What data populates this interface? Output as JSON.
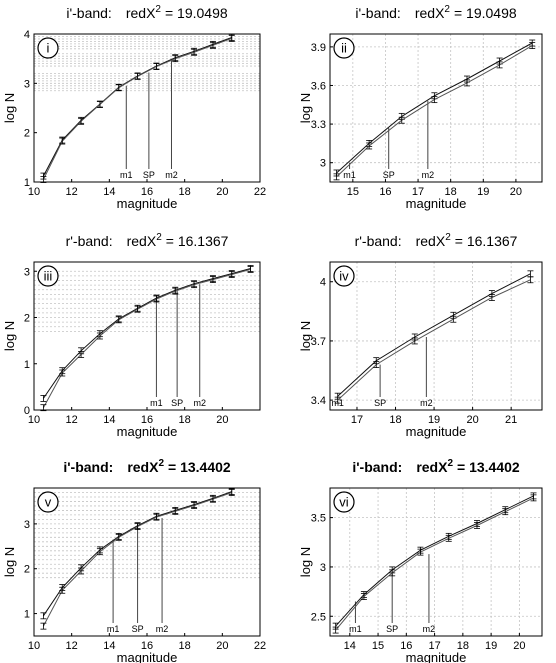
{
  "figure": {
    "panels": [
      {
        "id": "i",
        "roman": "i",
        "title_band": "i'-band:",
        "title_stat": "redX",
        "title_exp": "2",
        "title_value": "= 19.0498",
        "bold": false,
        "xlabel": "magnitude",
        "ylabel": "log N",
        "xlim": [
          10,
          22
        ],
        "ylim": [
          1,
          4
        ],
        "xticks": [
          10,
          12,
          14,
          16,
          18,
          20,
          22
        ],
        "yticks": [
          1,
          2,
          3,
          4
        ],
        "xgrid": [],
        "ygrid": [
          2.85,
          2.9,
          2.95,
          3.0,
          3.05,
          3.1,
          3.15,
          3.2,
          3.35,
          3.4,
          3.45,
          3.5,
          3.55,
          3.6,
          3.7,
          3.75,
          3.8,
          3.85,
          3.9,
          3.95
        ],
        "markers": [
          {
            "label": "m1",
            "x": 14.9,
            "y": 2.95
          },
          {
            "label": "SP",
            "x": 16.1,
            "y": 3.22
          },
          {
            "label": "m2",
            "x": 17.3,
            "y": 3.48
          }
        ]
      },
      {
        "id": "ii",
        "roman": "ii",
        "title_band": "i'-band:",
        "title_stat": "redX",
        "title_exp": "2",
        "title_value": "= 19.0498",
        "bold": false,
        "xlabel": "magnitude",
        "ylabel": "log N",
        "xlim": [
          14.3,
          20.8
        ],
        "ylim": [
          2.85,
          4.0
        ],
        "xticks": [
          15,
          16,
          17,
          18,
          19,
          20
        ],
        "yticks": [
          3,
          3.3,
          3.6,
          3.9
        ],
        "xgrid": [
          15,
          16,
          17,
          18,
          19,
          20
        ],
        "ygrid": [
          3,
          3.3,
          3.6,
          3.9
        ],
        "markers": [
          {
            "label": "m1",
            "x": 14.9,
            "y": 3.0
          },
          {
            "label": "SP",
            "x": 16.1,
            "y": 3.27
          },
          {
            "label": "m2",
            "x": 17.3,
            "y": 3.48
          }
        ]
      },
      {
        "id": "iii",
        "roman": "iii",
        "title_band": "r'-band:",
        "title_stat": "redX",
        "title_exp": "2",
        "title_value": "= 16.1367",
        "bold": false,
        "xlabel": "magnitude",
        "ylabel": "log N",
        "xlim": [
          10,
          22
        ],
        "ylim": [
          0,
          3.2
        ],
        "xticks": [
          10,
          12,
          14,
          16,
          18,
          20
        ],
        "yticks": [
          0,
          1,
          2,
          3
        ],
        "xgrid": [],
        "ygrid": [
          1.7,
          1.8,
          1.9,
          2.0,
          2.1,
          2.2,
          2.3,
          2.4,
          2.5,
          2.6,
          2.7,
          2.8,
          2.9,
          3.0
        ],
        "markers": [
          {
            "label": "m1",
            "x": 16.5,
            "y": 2.4
          },
          {
            "label": "SP",
            "x": 17.6,
            "y": 2.58
          },
          {
            "label": "m2",
            "x": 18.8,
            "y": 2.72
          }
        ]
      },
      {
        "id": "iv",
        "roman": "iv",
        "title_band": "r'-band:",
        "title_stat": "redX",
        "title_exp": "2",
        "title_value": "= 16.1367",
        "bold": false,
        "xlabel": "magnitude",
        "ylabel": "log N",
        "xlim": [
          16.3,
          21.8
        ],
        "ylim": [
          3.35,
          4.1
        ],
        "xticks": [
          17,
          18,
          19,
          20,
          21
        ],
        "yticks": [
          3.4,
          3.7,
          4
        ],
        "xgrid": [
          17,
          18,
          19,
          20,
          21
        ],
        "ygrid": [
          3.4,
          3.7,
          4.0
        ],
        "markers": [
          {
            "label": "m1",
            "x": 16.5,
            "y": 3.42
          },
          {
            "label": "SP",
            "x": 17.6,
            "y": 3.58
          },
          {
            "label": "m2",
            "x": 18.8,
            "y": 3.72
          }
        ]
      },
      {
        "id": "v",
        "roman": "v",
        "title_band": "i'-band:",
        "title_stat": "redX",
        "title_exp": "2",
        "title_value": "= 13.4402",
        "bold": true,
        "xlabel": "magnitude",
        "ylabel": "log N",
        "xlim": [
          10,
          22
        ],
        "ylim": [
          0.5,
          3.8
        ],
        "xticks": [
          10,
          12,
          14,
          16,
          18,
          20,
          22
        ],
        "yticks": [
          1,
          2,
          3
        ],
        "xgrid": [],
        "ygrid": [
          1.8,
          1.9,
          2.0,
          2.1,
          2.2,
          2.3,
          2.4,
          2.5,
          2.6,
          2.7,
          2.8,
          2.9,
          3.0,
          3.1,
          3.2,
          3.3,
          3.4,
          3.5,
          3.6,
          3.7
        ],
        "markers": [
          {
            "label": "m1",
            "x": 14.2,
            "y": 2.65
          },
          {
            "label": "SP",
            "x": 15.5,
            "y": 2.93
          },
          {
            "label": "m2",
            "x": 16.8,
            "y": 3.13
          }
        ]
      },
      {
        "id": "vi",
        "roman": "vi",
        "title_band": "i'-band:",
        "title_stat": "redX",
        "title_exp": "2",
        "title_value": "= 13.4402",
        "bold": true,
        "xlabel": "magnitude",
        "ylabel": "log N",
        "xlim": [
          13.3,
          20.8
        ],
        "ylim": [
          2.3,
          3.8
        ],
        "xticks": [
          14,
          15,
          16,
          17,
          18,
          19,
          20
        ],
        "yticks": [
          2.5,
          3,
          3.5
        ],
        "xgrid": [
          14,
          15,
          16,
          17,
          18,
          19,
          20
        ],
        "ygrid": [
          2.5,
          3.0,
          3.5
        ],
        "markers": [
          {
            "label": "m1",
            "x": 14.2,
            "y": 2.65
          },
          {
            "label": "SP",
            "x": 15.5,
            "y": 2.93
          },
          {
            "label": "m2",
            "x": 16.8,
            "y": 3.13
          }
        ]
      }
    ]
  },
  "chart_data": [
    {
      "type": "line",
      "panel": "i",
      "xlabel": "magnitude",
      "ylabel": "log N",
      "xlim": [
        10,
        22
      ],
      "ylim": [
        1,
        4
      ],
      "series": [
        {
          "x": [
            10.5,
            11.5,
            12.5,
            13.5,
            14.5,
            15.5,
            16.5,
            17.5,
            18.5,
            19.5,
            20.5
          ],
          "values": [
            1.12,
            1.85,
            2.25,
            2.58,
            2.92,
            3.15,
            3.35,
            3.52,
            3.65,
            3.79,
            3.93
          ]
        },
        {
          "x": [
            10.5,
            11.5,
            12.5,
            13.5,
            14.5,
            15.5,
            16.5,
            17.5,
            18.5,
            19.5,
            20.5
          ],
          "values": [
            1.05,
            1.83,
            2.23,
            2.57,
            2.91,
            3.14,
            3.34,
            3.5,
            3.63,
            3.77,
            3.91
          ]
        }
      ]
    },
    {
      "type": "line",
      "panel": "ii",
      "xlabel": "magnitude",
      "ylabel": "log N",
      "xlim": [
        14.3,
        20.8
      ],
      "ylim": [
        2.85,
        4.0
      ],
      "series": [
        {
          "x": [
            14.5,
            15.5,
            16.5,
            17.5,
            18.5,
            19.5,
            20.5
          ],
          "values": [
            2.92,
            3.15,
            3.36,
            3.52,
            3.65,
            3.79,
            3.93
          ]
        },
        {
          "x": [
            14.5,
            15.5,
            16.5,
            17.5,
            18.5,
            19.5,
            20.5
          ],
          "values": [
            2.89,
            3.13,
            3.33,
            3.49,
            3.62,
            3.76,
            3.91
          ]
        }
      ]
    },
    {
      "type": "line",
      "panel": "iii",
      "xlabel": "magnitude",
      "ylabel": "log N",
      "xlim": [
        10,
        22
      ],
      "ylim": [
        0,
        3.2
      ],
      "series": [
        {
          "x": [
            10.5,
            11.5,
            12.5,
            13.5,
            14.5,
            15.5,
            16.5,
            17.5,
            18.5,
            19.5,
            20.5,
            21.5
          ],
          "values": [
            0.25,
            0.85,
            1.28,
            1.65,
            1.97,
            2.2,
            2.42,
            2.59,
            2.73,
            2.84,
            2.95,
            3.06
          ]
        },
        {
          "x": [
            10.5,
            11.5,
            12.5,
            13.5,
            14.5,
            15.5,
            16.5,
            17.5,
            18.5,
            19.5,
            20.5,
            21.5
          ],
          "values": [
            0.05,
            0.8,
            1.2,
            1.6,
            1.95,
            2.18,
            2.4,
            2.57,
            2.71,
            2.82,
            2.93,
            3.04
          ]
        }
      ]
    },
    {
      "type": "line",
      "panel": "iv",
      "xlabel": "magnitude",
      "ylabel": "log N",
      "xlim": [
        16.3,
        21.8
      ],
      "ylim": [
        3.35,
        4.1
      ],
      "series": [
        {
          "x": [
            16.5,
            17.5,
            18.5,
            19.5,
            20.5,
            21.5
          ],
          "values": [
            3.42,
            3.6,
            3.72,
            3.83,
            3.94,
            4.04
          ]
        },
        {
          "x": [
            16.5,
            17.5,
            18.5,
            19.5,
            20.5,
            21.5
          ],
          "values": [
            3.4,
            3.58,
            3.7,
            3.81,
            3.92,
            4.01
          ]
        }
      ]
    },
    {
      "type": "line",
      "panel": "v",
      "xlabel": "magnitude",
      "ylabel": "log N",
      "xlim": [
        10,
        22
      ],
      "ylim": [
        0.5,
        3.8
      ],
      "series": [
        {
          "x": [
            10.5,
            11.5,
            12.5,
            13.5,
            14.5,
            15.5,
            16.5,
            17.5,
            18.5,
            19.5,
            20.5
          ],
          "values": [
            0.95,
            1.58,
            2.02,
            2.42,
            2.72,
            2.96,
            3.17,
            3.3,
            3.43,
            3.57,
            3.72
          ]
        },
        {
          "x": [
            10.5,
            11.5,
            12.5,
            13.5,
            14.5,
            15.5,
            16.5,
            17.5,
            18.5,
            19.5,
            20.5
          ],
          "values": [
            0.72,
            1.52,
            1.95,
            2.38,
            2.7,
            2.94,
            3.15,
            3.28,
            3.41,
            3.55,
            3.7
          ]
        }
      ]
    },
    {
      "type": "line",
      "panel": "vi",
      "xlabel": "magnitude",
      "ylabel": "log N",
      "xlim": [
        13.3,
        20.8
      ],
      "ylim": [
        2.3,
        3.8
      ],
      "series": [
        {
          "x": [
            13.5,
            14.5,
            15.5,
            16.5,
            17.5,
            18.5,
            19.5,
            20.5
          ],
          "values": [
            2.4,
            2.72,
            2.97,
            3.17,
            3.31,
            3.44,
            3.58,
            3.72
          ]
        },
        {
          "x": [
            13.5,
            14.5,
            15.5,
            16.5,
            17.5,
            18.5,
            19.5,
            20.5
          ],
          "values": [
            2.36,
            2.7,
            2.94,
            3.15,
            3.29,
            3.42,
            3.56,
            3.7
          ]
        }
      ]
    }
  ]
}
